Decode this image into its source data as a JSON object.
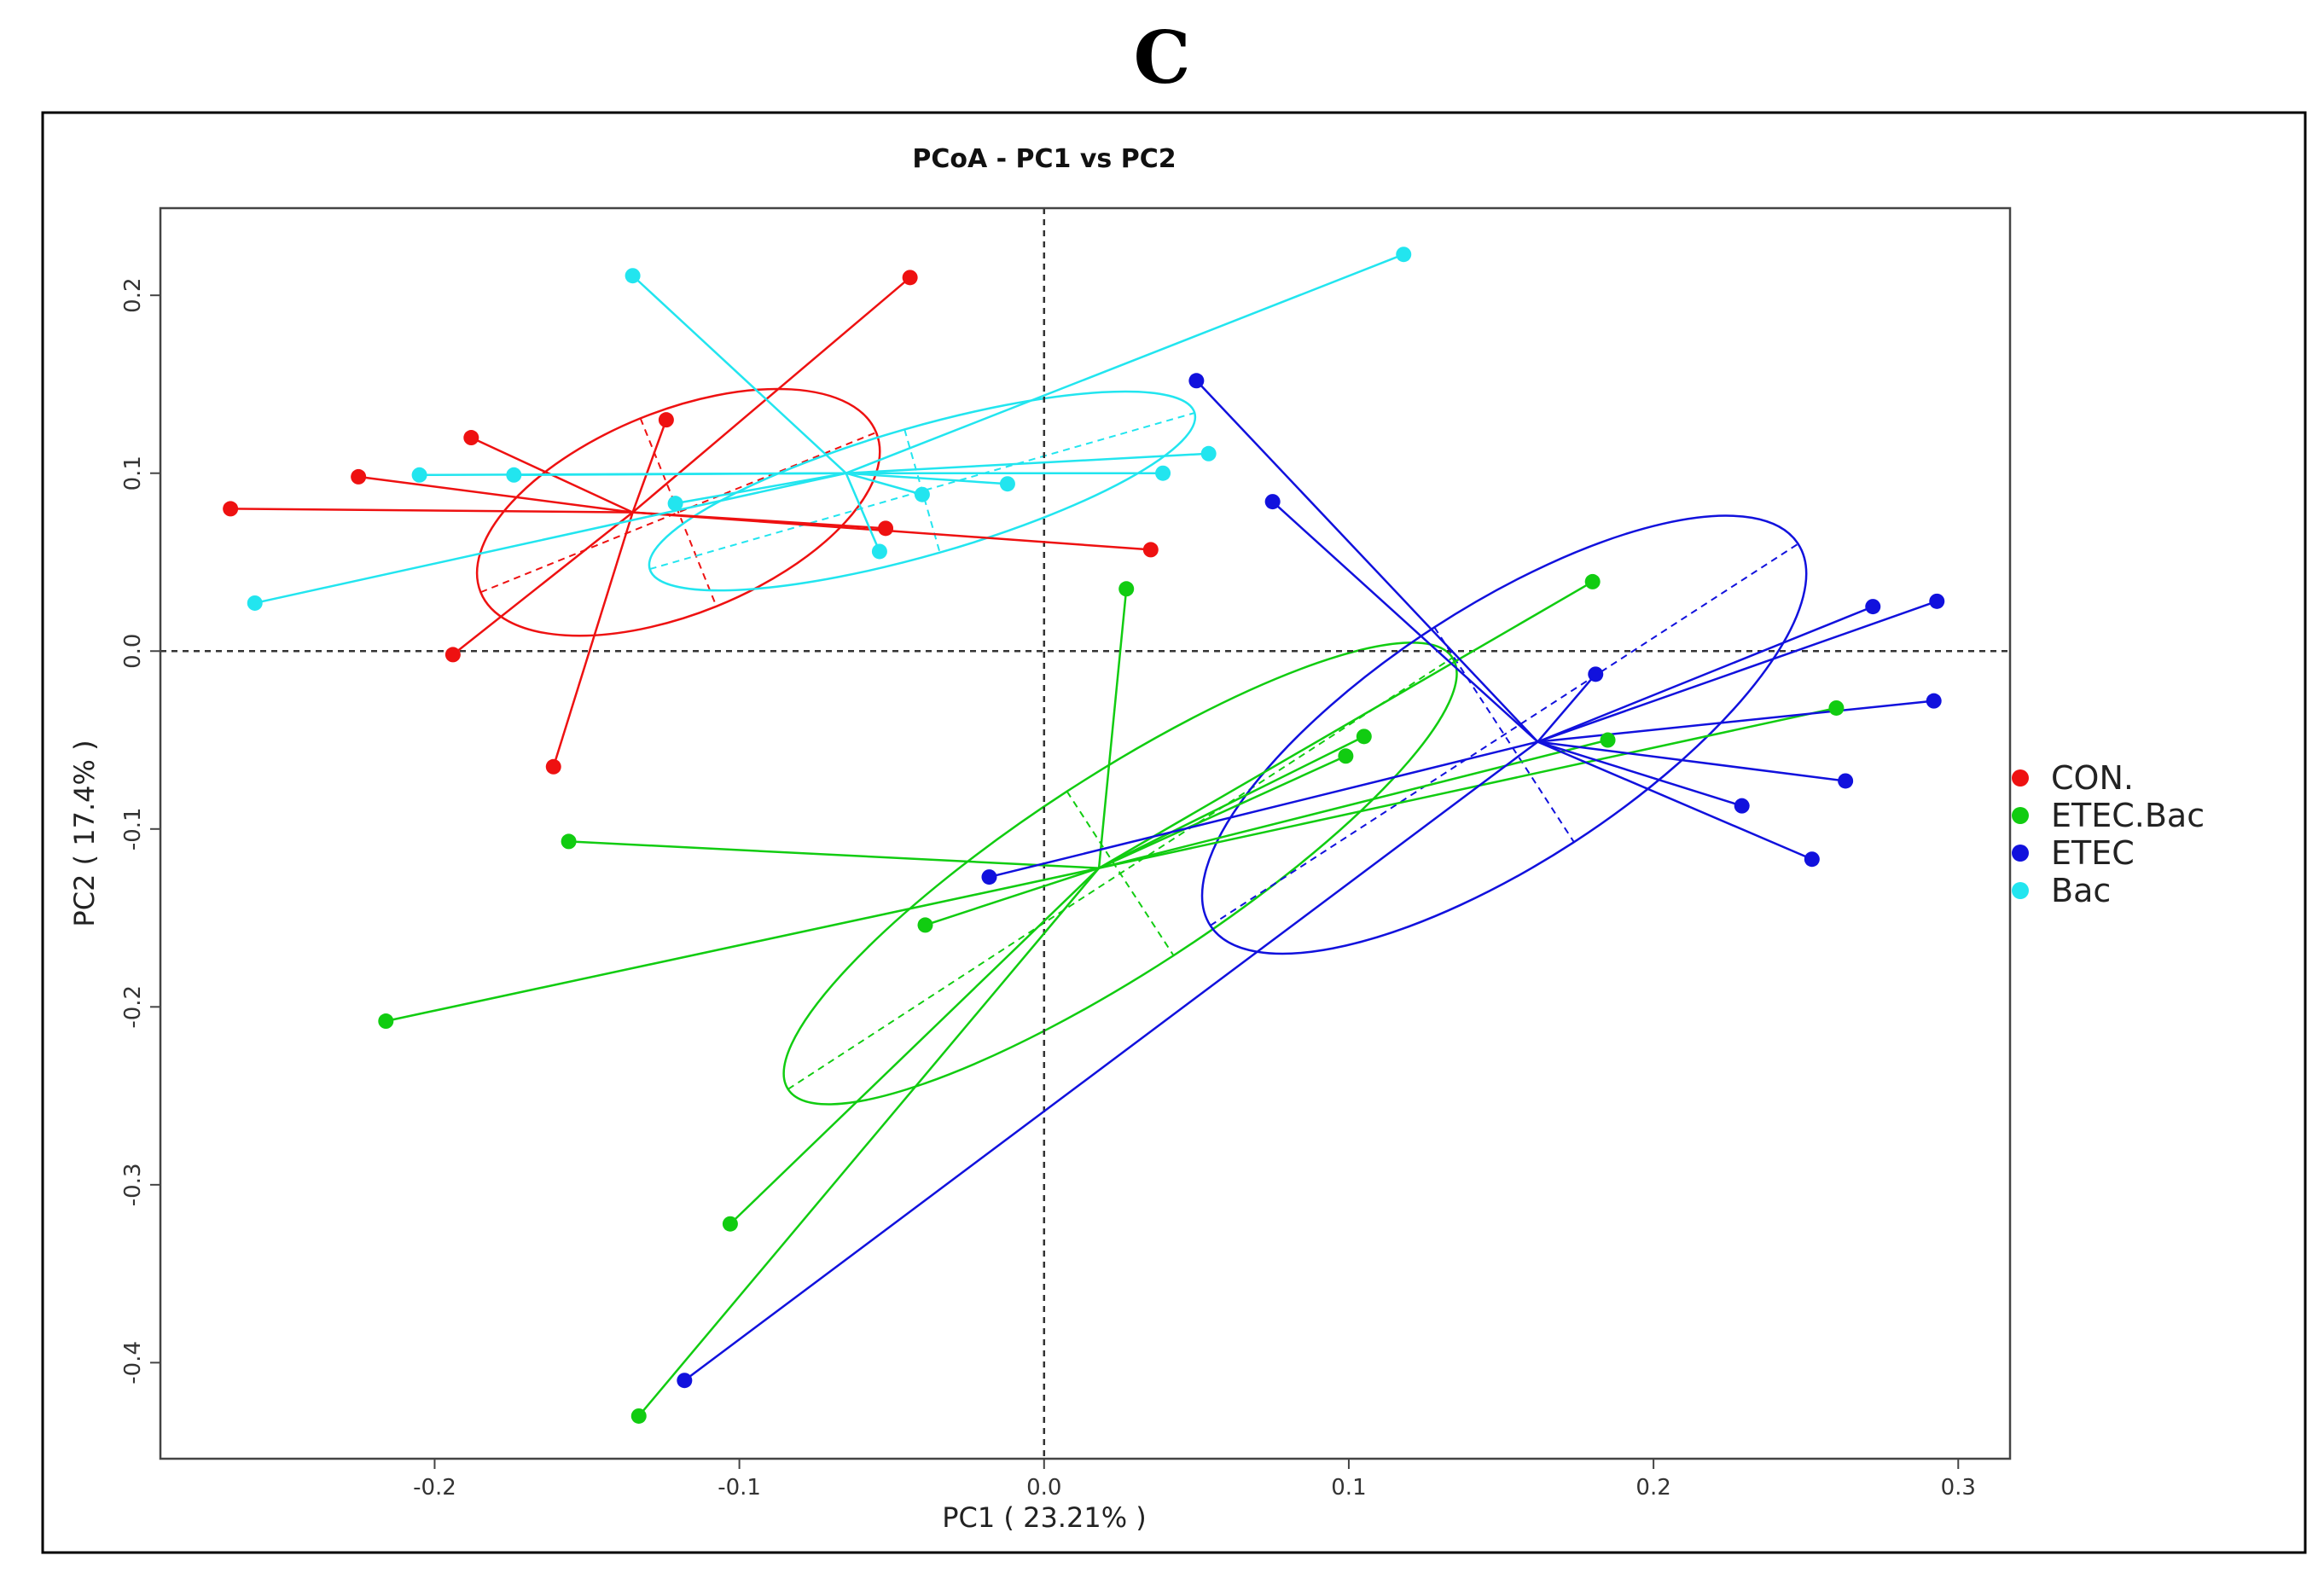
{
  "figure": {
    "panel_label": "C"
  },
  "chart_data": {
    "type": "scatter",
    "title": "PCoA - PC1 vs PC2",
    "xlabel": "PC1 ( 23.21% )",
    "ylabel": "PC2 ( 17.4% )",
    "xlim": [
      -0.29,
      0.317
    ],
    "ylim": [
      -0.454,
      0.249
    ],
    "xticks": [
      -0.2,
      -0.1,
      0.0,
      0.1,
      0.2,
      0.3
    ],
    "xtick_labels": [
      "-0.2",
      "-0.1",
      "0.0",
      "0.1",
      "0.2",
      "0.3"
    ],
    "yticks": [
      -0.4,
      -0.3,
      -0.2,
      -0.1,
      0.0,
      0.1,
      0.2
    ],
    "ytick_labels": [
      "-0.4",
      "-0.3",
      "-0.2",
      "-0.1",
      "0.0",
      "0.1",
      "0.2"
    ],
    "reference_lines": {
      "x": 0,
      "y": 0
    },
    "grid": false,
    "legend_position": "right",
    "series": [
      {
        "name": "CON.",
        "color": "#ee1111",
        "centroid": [
          -0.135,
          0.078
        ],
        "ellipse": {
          "center": [
            -0.12,
            0.078
          ],
          "semi_axes": [
            0.07,
            0.057
          ],
          "angle_deg": 22
        },
        "points": [
          [
            -0.267,
            0.08
          ],
          [
            -0.225,
            0.098
          ],
          [
            -0.188,
            0.12
          ],
          [
            -0.124,
            0.13
          ],
          [
            -0.044,
            0.21
          ],
          [
            -0.052,
            0.069
          ],
          [
            0.035,
            0.057
          ],
          [
            -0.194,
            -0.002
          ],
          [
            -0.161,
            -0.065
          ]
        ]
      },
      {
        "name": "ETEC.Bac",
        "color": "#11cc11",
        "centroid": [
          0.018,
          -0.122
        ],
        "ellipse": {
          "center": [
            0.025,
            -0.125
          ],
          "semi_axes": [
            0.13,
            0.055
          ],
          "angle_deg": 33
        },
        "points": [
          [
            0.027,
            0.035
          ],
          [
            0.18,
            0.039
          ],
          [
            0.105,
            -0.048
          ],
          [
            0.099,
            -0.059
          ],
          [
            0.185,
            -0.05
          ],
          [
            0.26,
            -0.032
          ],
          [
            -0.156,
            -0.107
          ],
          [
            -0.039,
            -0.154
          ],
          [
            -0.216,
            -0.208
          ],
          [
            -0.103,
            -0.322
          ],
          [
            -0.133,
            -0.43
          ]
        ]
      },
      {
        "name": "ETEC",
        "color": "#1111dd",
        "centroid": [
          0.162,
          -0.051
        ],
        "ellipse": {
          "center": [
            0.151,
            -0.047
          ],
          "semi_axes": [
            0.115,
            0.072
          ],
          "angle_deg": 33
        },
        "points": [
          [
            0.05,
            0.152
          ],
          [
            0.075,
            0.084
          ],
          [
            0.181,
            -0.013
          ],
          [
            0.272,
            0.025
          ],
          [
            0.293,
            0.028
          ],
          [
            0.292,
            -0.028
          ],
          [
            0.263,
            -0.073
          ],
          [
            0.229,
            -0.087
          ],
          [
            0.252,
            -0.117
          ],
          [
            -0.018,
            -0.127
          ],
          [
            -0.118,
            -0.41
          ]
        ]
      },
      {
        "name": "Bac",
        "color": "#22e5ef",
        "centroid": [
          -0.065,
          0.1
        ],
        "ellipse": {
          "center": [
            -0.04,
            0.09
          ],
          "semi_axes": [
            0.093,
            0.036
          ],
          "angle_deg": 16
        },
        "points": [
          [
            -0.135,
            0.211
          ],
          [
            0.118,
            0.223
          ],
          [
            0.054,
            0.111
          ],
          [
            0.039,
            0.1
          ],
          [
            -0.205,
            0.099
          ],
          [
            -0.174,
            0.099
          ],
          [
            -0.121,
            0.083
          ],
          [
            -0.04,
            0.088
          ],
          [
            -0.012,
            0.094
          ],
          [
            -0.054,
            0.056
          ],
          [
            -0.259,
            0.027
          ]
        ]
      }
    ]
  }
}
